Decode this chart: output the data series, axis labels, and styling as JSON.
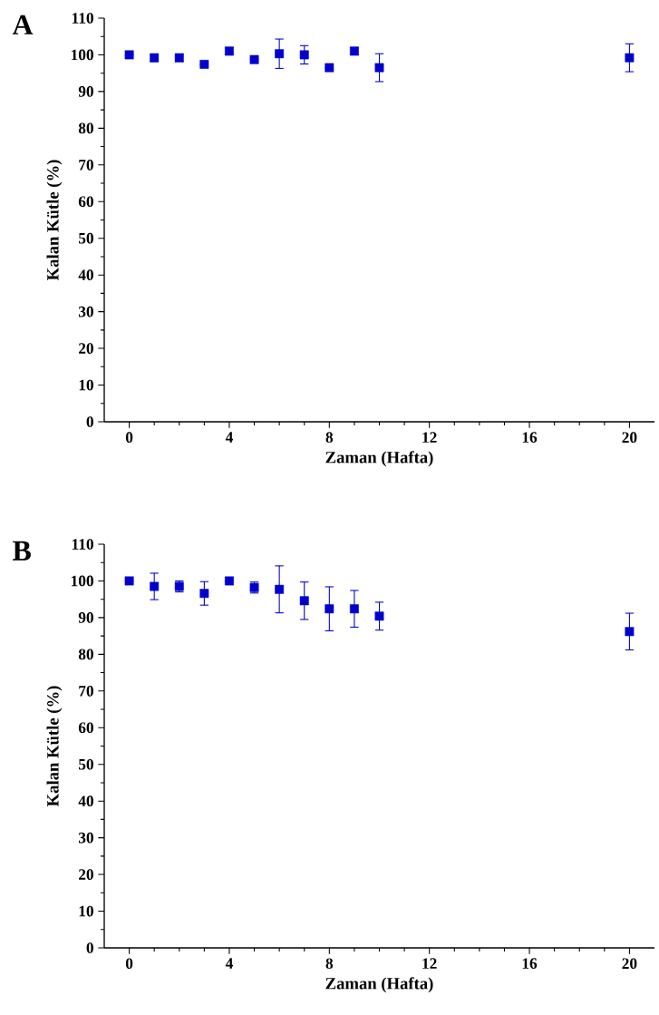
{
  "chart_data": [
    {
      "type": "scatter",
      "title": "A",
      "xlabel": "Zaman (Hafta)",
      "ylabel": "Kalan Kütle (%)",
      "color": "#0000cc",
      "marker": "square",
      "x": [
        0,
        1,
        2,
        3,
        4,
        5,
        6,
        7,
        8,
        9,
        10,
        20
      ],
      "values": [
        100,
        99.2,
        99.2,
        97.4,
        101,
        98.7,
        100.3,
        100,
        96.5,
        101,
        96.5,
        99.2
      ],
      "errors": [
        null,
        1,
        1,
        null,
        1,
        null,
        4,
        2.5,
        null,
        1,
        3.8,
        3.8
      ],
      "xlim": [
        -1,
        21
      ],
      "xticks": [
        0,
        4,
        8,
        12,
        16,
        20
      ],
      "ylim": [
        0,
        110
      ],
      "yticks": [
        0,
        10,
        20,
        30,
        40,
        50,
        60,
        70,
        80,
        90,
        100,
        110
      ]
    },
    {
      "type": "scatter",
      "title": "B",
      "xlabel": "Zaman (Hafta)",
      "ylabel": "Kalan Kütle (%)",
      "color": "#0000cc",
      "marker": "square",
      "x": [
        0,
        1,
        2,
        3,
        4,
        5,
        6,
        7,
        8,
        9,
        10,
        20
      ],
      "values": [
        100,
        98.5,
        98.5,
        96.6,
        100,
        98.2,
        97.7,
        94.6,
        92.4,
        92.4,
        90.4,
        86.2
      ],
      "errors": [
        null,
        3.6,
        1.5,
        3.2,
        null,
        1.5,
        6.4,
        5.1,
        6,
        5,
        3.8,
        5
      ],
      "xlim": [
        -1,
        21
      ],
      "xticks": [
        0,
        4,
        8,
        12,
        16,
        20
      ],
      "ylim": [
        0,
        110
      ],
      "yticks": [
        0,
        10,
        20,
        30,
        40,
        50,
        60,
        70,
        80,
        90,
        100,
        110
      ]
    }
  ]
}
